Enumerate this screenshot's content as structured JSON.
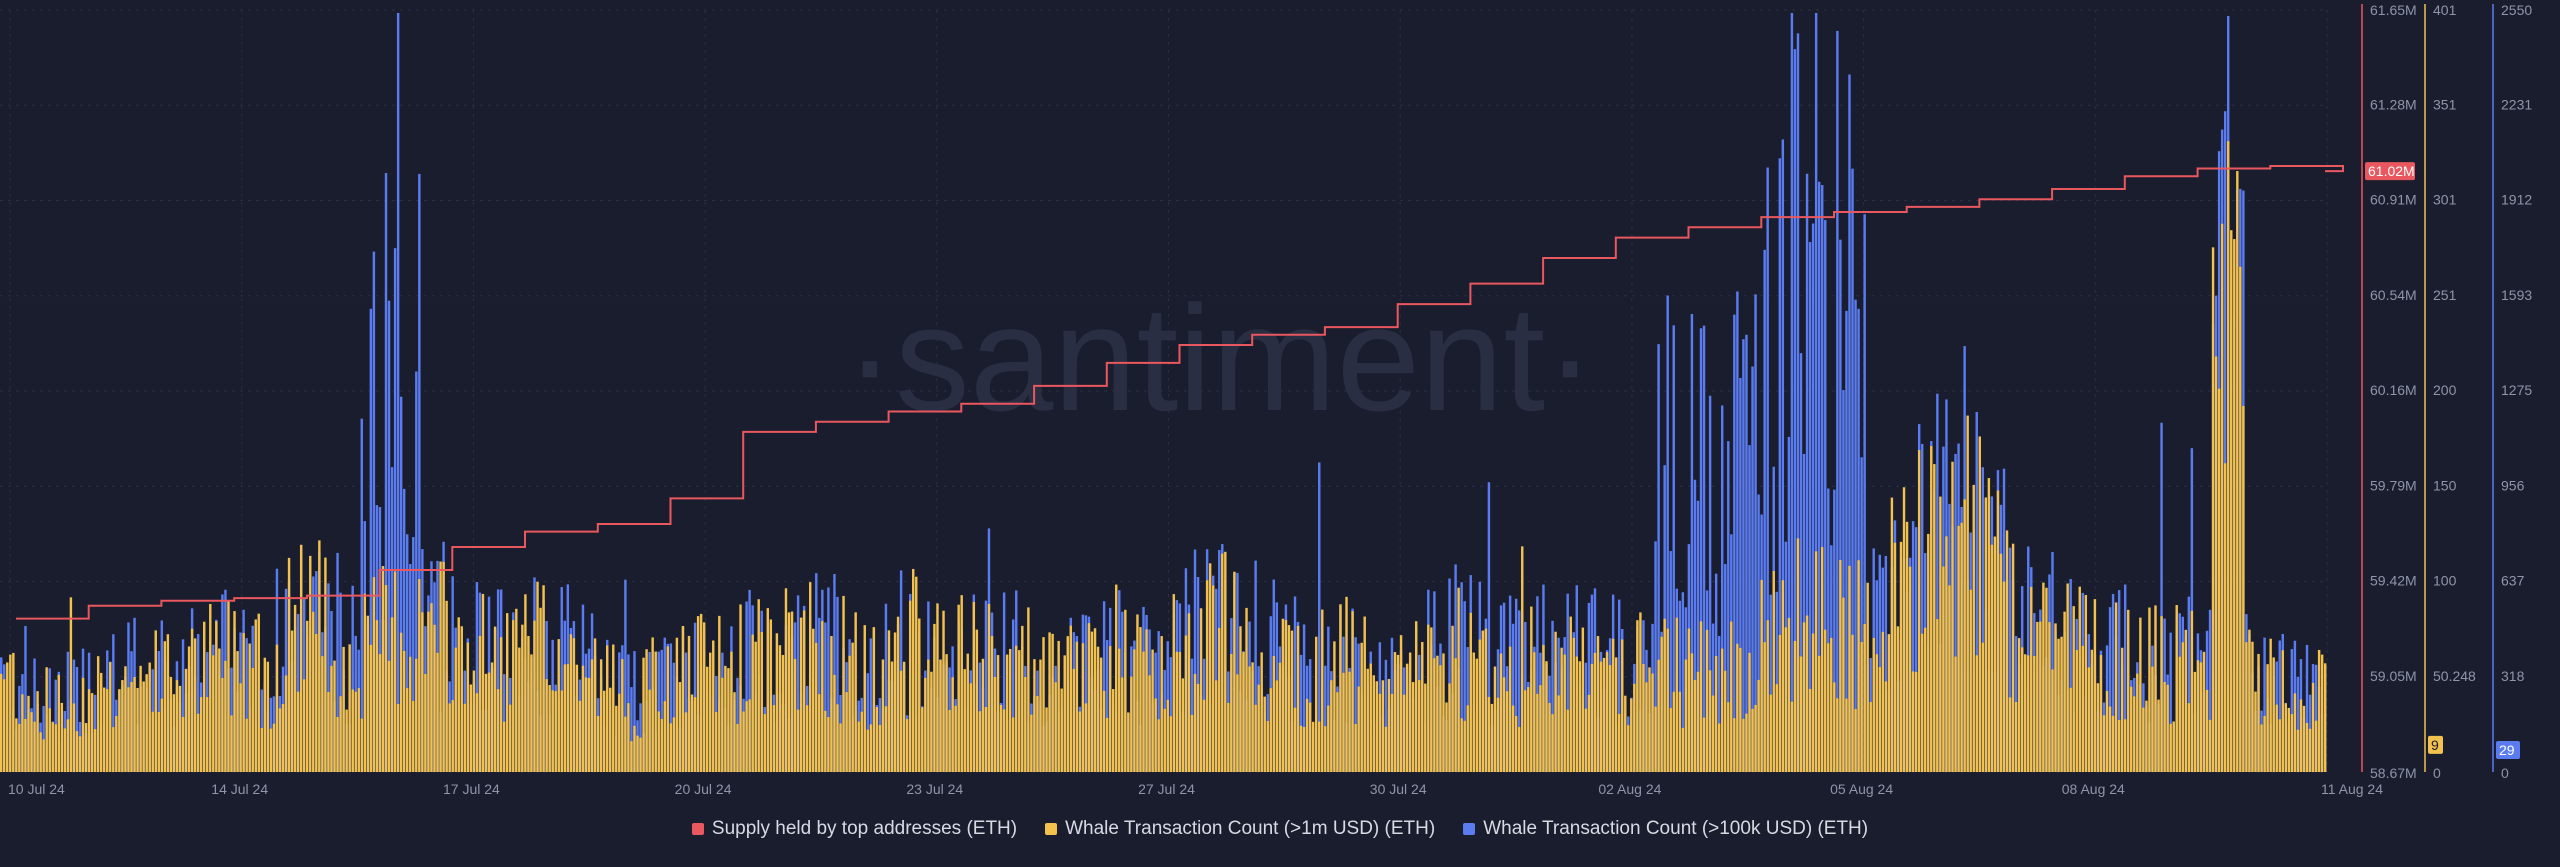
{
  "watermark": "·santiment·",
  "colors": {
    "background": "#1a1d2e",
    "supply": "#e9575f",
    "whale_1m": "#f2c14e",
    "whale_100k": "#5a7cf0",
    "grid": "#2b2f44",
    "axis_text": "#8f94a8"
  },
  "chart_data": {
    "type": "bar",
    "grid": true,
    "legend_position": "bottom",
    "x_axis": {
      "start": "10 Jul 24",
      "end": "11 Aug 24",
      "tick_labels": [
        "10 Jul 24",
        "14 Jul 24",
        "17 Jul 24",
        "20 Jul 24",
        "23 Jul 24",
        "27 Jul 24",
        "30 Jul 24",
        "02 Aug 24",
        "05 Aug 24",
        "08 Aug 24",
        "11 Aug 24"
      ]
    },
    "y_axes": [
      {
        "id": "supply",
        "color": "#e9575f",
        "range": [
          58.67,
          61.65
        ],
        "unit": "M",
        "tick_labels": [
          "61.65M",
          "61.28M",
          "60.91M",
          "60.54M",
          "60.16M",
          "59.79M",
          "59.42M",
          "59.05M",
          "58.67M"
        ],
        "current_value_label": "61.02M"
      },
      {
        "id": "whale_1m",
        "color": "#f2c14e",
        "range": [
          0,
          401
        ],
        "tick_labels": [
          "401",
          "351",
          "301",
          "251",
          "200",
          "150",
          "100",
          "50.248",
          "0"
        ],
        "current_value_label": "9"
      },
      {
        "id": "whale_100k",
        "color": "#5a7cf0",
        "range": [
          0,
          2550
        ],
        "tick_labels": [
          "2550",
          "2231",
          "1912",
          "1593",
          "1275",
          "956",
          "637",
          "318",
          "0"
        ],
        "current_value_label": "29"
      }
    ],
    "series": [
      {
        "name": "Supply held by top addresses (ETH)",
        "type": "step-line",
        "axis": "supply",
        "color": "#e9575f",
        "x_days": [
          0,
          1,
          2,
          3,
          4,
          5,
          6,
          7,
          8,
          9,
          10,
          11,
          12,
          13,
          14,
          15,
          16,
          17,
          18,
          19,
          20,
          21,
          22,
          23,
          24,
          25,
          26,
          27,
          28,
          29,
          30,
          31,
          32
        ],
        "values": [
          59.27,
          59.32,
          59.34,
          59.35,
          59.36,
          59.46,
          59.55,
          59.61,
          59.64,
          59.74,
          60.0,
          60.04,
          60.08,
          60.11,
          60.18,
          60.27,
          60.34,
          60.38,
          60.41,
          60.5,
          60.58,
          60.68,
          60.76,
          60.8,
          60.84,
          60.86,
          60.88,
          60.91,
          60.95,
          61.0,
          61.03,
          61.04,
          61.02
        ]
      },
      {
        "name": "Whale Transaction Count (>1m USD) (ETH)",
        "type": "bar",
        "axis": "whale_1m",
        "color": "#f2c14e",
        "samples_per_day": 24,
        "pattern": [
          [
            0,
            55
          ],
          [
            2,
            40
          ],
          [
            4,
            36
          ],
          [
            7,
            48
          ],
          [
            10,
            50
          ],
          [
            15,
            56
          ],
          [
            18,
            70
          ],
          [
            20,
            55
          ],
          [
            23,
            95
          ],
          [
            26,
            60
          ],
          [
            30,
            80
          ],
          [
            33,
            75
          ],
          [
            37,
            60
          ],
          [
            41,
            68
          ],
          [
            44,
            58
          ],
          [
            48,
            40
          ],
          [
            52,
            55
          ],
          [
            56,
            60
          ],
          [
            60,
            66
          ],
          [
            63,
            68
          ],
          [
            66,
            52
          ],
          [
            70,
            72
          ],
          [
            74,
            60
          ],
          [
            77,
            62
          ],
          [
            80,
            50
          ],
          [
            82,
            55
          ],
          [
            85,
            70
          ],
          [
            88,
            48
          ],
          [
            91,
            75
          ],
          [
            94,
            82
          ],
          [
            97,
            64
          ],
          [
            100,
            58
          ],
          [
            103,
            62
          ],
          [
            105,
            48
          ],
          [
            108,
            55
          ],
          [
            111,
            68
          ],
          [
            114,
            60
          ],
          [
            116,
            57
          ],
          [
            119,
            62
          ],
          [
            122,
            60
          ],
          [
            125,
            58
          ],
          [
            128,
            55
          ],
          [
            131,
            55
          ],
          [
            134,
            60
          ],
          [
            136,
            80
          ],
          [
            139,
            100
          ],
          [
            141,
            90
          ],
          [
            143,
            72
          ],
          [
            146,
            120
          ],
          [
            148,
            135
          ],
          [
            150,
            140
          ],
          [
            152,
            110
          ],
          [
            154,
            90
          ],
          [
            156,
            80
          ],
          [
            158,
            72
          ],
          [
            160,
            65
          ],
          [
            162,
            62
          ],
          [
            164,
            60
          ],
          [
            166,
            60
          ],
          [
            168,
            58
          ],
          [
            170,
            55
          ],
          [
            172,
            52
          ],
          [
            175,
            45
          ],
          [
            178,
            42
          ]
        ],
        "approx_peak": 332,
        "approx_last": 9
      },
      {
        "name": "Whale Transaction Count (>100k USD) (ETH)",
        "type": "bar",
        "axis": "whale_100k",
        "color": "#5a7cf0",
        "approx_peak": 2530,
        "approx_last": 29
      }
    ]
  }
}
